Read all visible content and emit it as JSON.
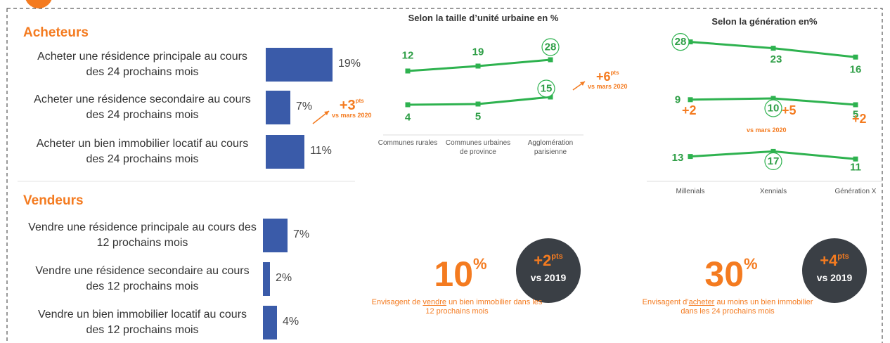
{
  "chart_data": [
    {
      "type": "hbar",
      "title": "Acheteurs",
      "categories": [
        "Acheter une résidence principale au cours des 24 prochains mois",
        "Acheter une résidence secondaire au cours des 24 prochains mois",
        "Acheter un bien immobilier locatif au cours des 24 prochains mois"
      ],
      "values": [
        19,
        7,
        11
      ],
      "value_labels": [
        "19%",
        "7%",
        "11%"
      ],
      "color": "#3a5ba9",
      "annotation": {
        "text": "+3",
        "unit": "pts",
        "note": "vs mars 2020"
      }
    },
    {
      "type": "hbar",
      "title": "Vendeurs",
      "categories": [
        "Vendre une résidence principale au cours des 12 prochains mois",
        "Vendre une résidence secondaire au cours des 12 prochains mois",
        "Vendre un bien immobilier locatif au cours des 12 prochains mois"
      ],
      "values": [
        7,
        2,
        4
      ],
      "value_labels": [
        "7%",
        "2%",
        "4%"
      ],
      "color": "#3a5ba9"
    },
    {
      "type": "line",
      "title": "Selon la taille d’unité urbaine en %",
      "categories": [
        "Communes rurales",
        "Communes urbaines de province",
        "Agglomération parisienne"
      ],
      "series": [
        {
          "color": "#2eb24f",
          "values": [
            12,
            19,
            28
          ],
          "highlight": 2
        },
        {
          "color": "#2eb24f",
          "values": [
            4,
            5,
            15
          ],
          "highlight": 2
        }
      ],
      "annotations": [
        {
          "text": "+6",
          "unit": "pts",
          "note": "vs mars 2020"
        }
      ]
    },
    {
      "type": "line",
      "title": "Selon la génération en%",
      "categories": [
        "Millenials",
        "Xennials",
        "Génération X"
      ],
      "series": [
        {
          "color": "#2eb24f",
          "values": [
            28,
            23,
            16
          ],
          "highlight": 0
        },
        {
          "color": "#2eb24f",
          "values": [
            9,
            10,
            5
          ],
          "highlight": 1
        },
        {
          "color": "#2eb24f",
          "values": [
            13,
            17,
            11
          ],
          "highlight": 1
        }
      ],
      "annotations": [
        {
          "text": "+2"
        },
        {
          "text": "+5"
        },
        {
          "text": "+2"
        },
        {
          "note": "vs mars 2020"
        }
      ]
    }
  ],
  "kpis": [
    {
      "value": 10,
      "unit": "%",
      "text": [
        "Envisagent de ",
        "vendre",
        " un bien immobilier dans les 12 prochains mois"
      ],
      "badge": {
        "value": "+2",
        "unit": "pts",
        "note": "vs 2019"
      }
    },
    {
      "value": 30,
      "unit": "%",
      "text": [
        "Envisagent d’",
        "acheter",
        " au moins un bien immobilier dans les 24  prochains mois"
      ],
      "badge": {
        "value": "+4",
        "unit": "pts",
        "note": "vs 2019"
      }
    }
  ]
}
